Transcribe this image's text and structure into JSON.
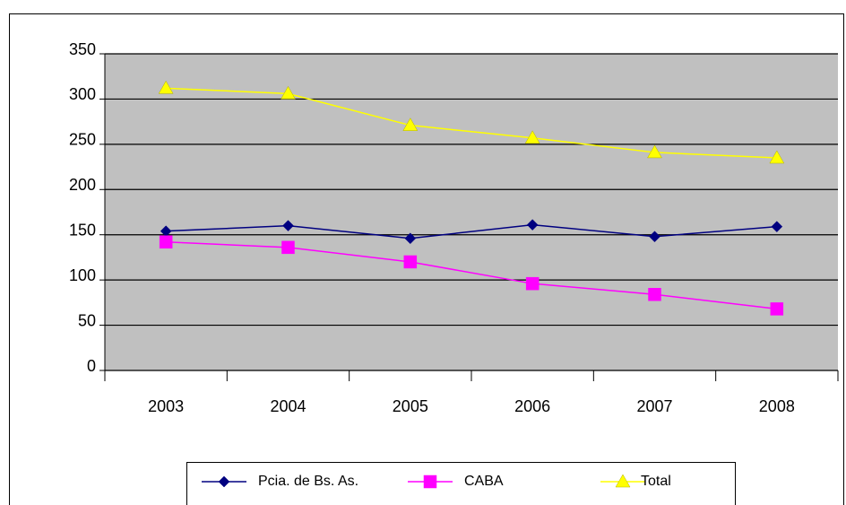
{
  "chart_data": {
    "type": "line",
    "categories": [
      "2003",
      "2004",
      "2005",
      "2006",
      "2007",
      "2008"
    ],
    "series": [
      {
        "name": "Pcia. de Bs. As.",
        "color": "#000080",
        "marker": "diamond",
        "values": [
          154,
          160,
          146,
          161,
          148,
          159
        ]
      },
      {
        "name": "CABA",
        "color": "#ff00ff",
        "marker": "square",
        "values": [
          142,
          136,
          120,
          96,
          84,
          68
        ]
      },
      {
        "name": "Total",
        "color": "#ffff00",
        "marker": "triangle",
        "values": [
          312,
          306,
          271,
          257,
          241,
          235
        ]
      }
    ],
    "ylim": [
      0,
      350
    ],
    "yticks": [
      0,
      50,
      100,
      150,
      200,
      250,
      300,
      350
    ],
    "grid": true,
    "legend": "bottom",
    "plot_background": "#c0c0c0"
  }
}
